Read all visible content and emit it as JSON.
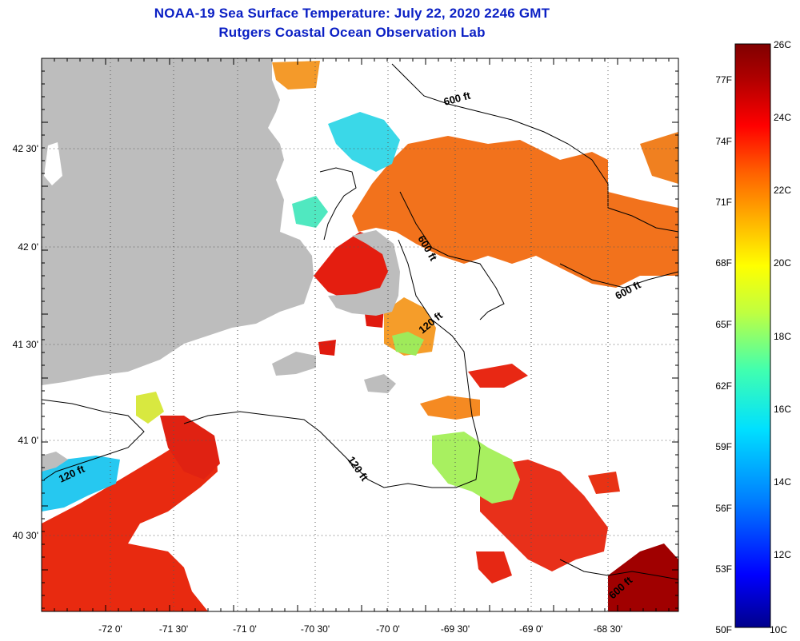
{
  "header": {
    "title": "NOAA-19 Sea Surface Temperature:  July 22, 2020 2246 GMT",
    "subtitle": "Rutgers Coastal Ocean Observation Lab"
  },
  "axes": {
    "longitude_ticks": [
      "-72 0'",
      "-71 30'",
      "-71 0'",
      "-70 30'",
      "-70 0'",
      "-69 30'",
      "-69 0'",
      "-68 30'"
    ],
    "latitude_ticks": [
      "42 30'",
      "42 0'",
      "41 30'",
      "41 0'",
      "40 30'"
    ],
    "grid": "dotted"
  },
  "contour_labels": [
    "600 ft",
    "600 ft",
    "600 ft",
    "600 ft",
    "120 ft",
    "120 ft",
    "120 ft"
  ],
  "colorbar": {
    "fahrenheit_labels": [
      "77F",
      "74F",
      "71F",
      "68F",
      "65F",
      "62F",
      "59F",
      "56F",
      "53F",
      "50F"
    ],
    "celsius_labels": [
      "26C",
      "24C",
      "22C",
      "20C",
      "18C",
      "16C",
      "14C",
      "12C",
      "10C"
    ],
    "range_c": [
      10,
      26
    ],
    "colors": [
      "#00008b",
      "#0000ff",
      "#0080ff",
      "#00e0ff",
      "#40ffb0",
      "#c0ff40",
      "#ffff00",
      "#ffb000",
      "#ff6000",
      "#ff0000",
      "#b00000",
      "#800000"
    ]
  },
  "colors": {
    "title": "#0a1fc4",
    "land": "#bdbdbd",
    "cloud_mask": "#ffffff"
  }
}
